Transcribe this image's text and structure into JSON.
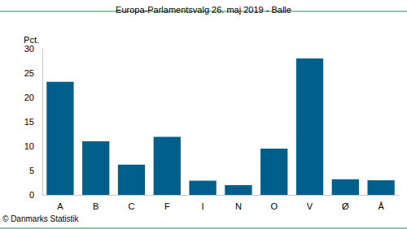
{
  "chart_data": {
    "type": "bar",
    "title": "Europa-Parlamentsvalg 26. maj 2019 - Balle",
    "y_label": "Pct.",
    "footer": "© Danmarks Statistik",
    "categories": [
      "A",
      "B",
      "C",
      "F",
      "I",
      "N",
      "O",
      "V",
      "Ø",
      "Å"
    ],
    "values": [
      23.2,
      11.0,
      6.2,
      11.9,
      2.9,
      2.0,
      9.5,
      28.0,
      3.2,
      3.0
    ],
    "color": "#00608b",
    "ylim": [
      0,
      30
    ],
    "yticks": [
      0,
      5,
      10,
      15,
      20,
      25,
      30
    ],
    "grid": false
  }
}
